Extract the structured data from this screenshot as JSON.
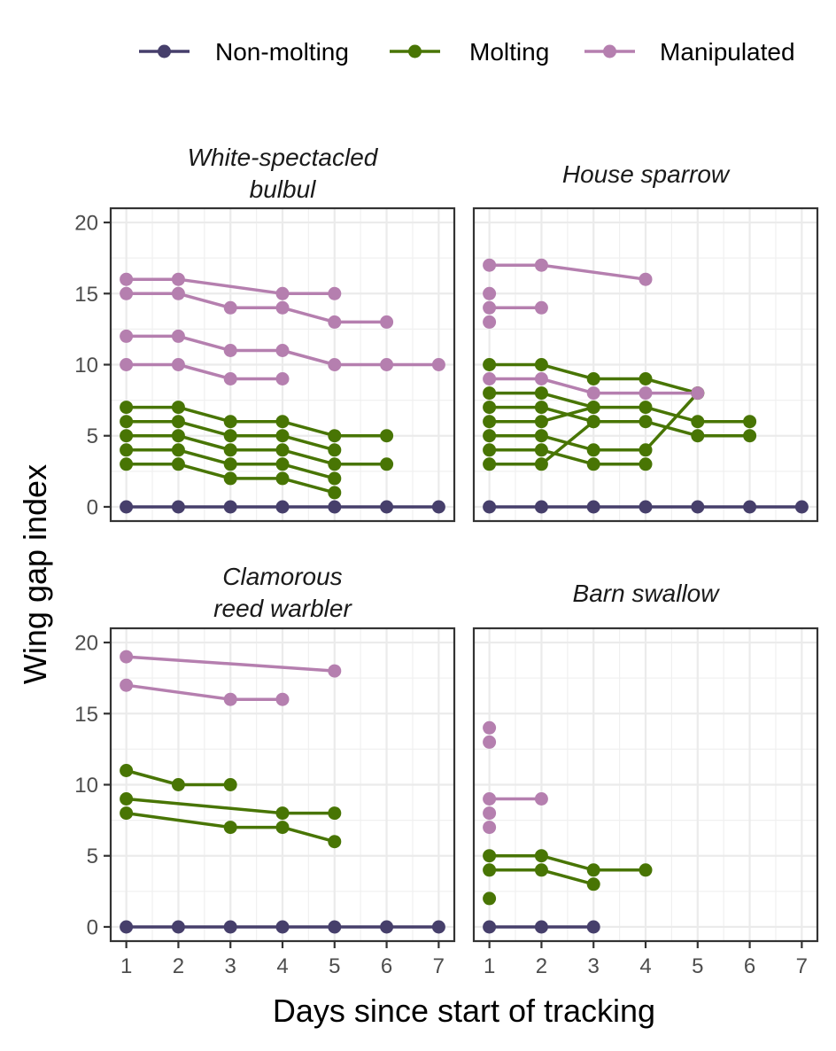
{
  "chart_data": {
    "type": "line",
    "xlabel": "Days since start of tracking",
    "ylabel": "Wing gap index",
    "xlim": [
      0.7,
      7.3
    ],
    "ylim": [
      -1,
      21
    ],
    "x_ticks": [
      1,
      2,
      3,
      4,
      5,
      6,
      7
    ],
    "y_ticks": [
      0,
      5,
      10,
      15,
      20
    ],
    "grid": true,
    "legend_position": "top",
    "legend": [
      {
        "name": "Non-molting",
        "color": "#463F6B"
      },
      {
        "name": "Molting",
        "color": "#487504"
      },
      {
        "name": "Manipulated",
        "color": "#B57FAF"
      }
    ],
    "panels": [
      {
        "title_lines": [
          "White-spectacled",
          "bulbul"
        ],
        "series": [
          {
            "group": "Non-molting",
            "points": [
              [
                1,
                0
              ],
              [
                2,
                0
              ],
              [
                3,
                0
              ],
              [
                4,
                0
              ],
              [
                5,
                0
              ],
              [
                6,
                0
              ],
              [
                7,
                0
              ]
            ]
          },
          {
            "group": "Molting",
            "points": [
              [
                1,
                7
              ],
              [
                2,
                7
              ],
              [
                3,
                6
              ],
              [
                4,
                6
              ],
              [
                5,
                5
              ],
              [
                6,
                5
              ]
            ]
          },
          {
            "group": "Molting",
            "points": [
              [
                1,
                6
              ],
              [
                2,
                6
              ],
              [
                3,
                5
              ],
              [
                4,
                5
              ],
              [
                5,
                4
              ]
            ]
          },
          {
            "group": "Molting",
            "points": [
              [
                1,
                5
              ],
              [
                2,
                5
              ],
              [
                3,
                4
              ],
              [
                4,
                4
              ],
              [
                5,
                3
              ],
              [
                6,
                3
              ]
            ]
          },
          {
            "group": "Molting",
            "points": [
              [
                1,
                4
              ],
              [
                2,
                4
              ],
              [
                3,
                3
              ],
              [
                4,
                3
              ],
              [
                5,
                2
              ]
            ]
          },
          {
            "group": "Molting",
            "points": [
              [
                1,
                3
              ],
              [
                2,
                3
              ],
              [
                3,
                2
              ],
              [
                4,
                2
              ],
              [
                5,
                1
              ]
            ]
          },
          {
            "group": "Manipulated",
            "points": [
              [
                1,
                16
              ],
              [
                2,
                16
              ],
              [
                4,
                15
              ],
              [
                5,
                15
              ]
            ]
          },
          {
            "group": "Manipulated",
            "points": [
              [
                1,
                15
              ],
              [
                2,
                15
              ],
              [
                3,
                14
              ],
              [
                4,
                14
              ],
              [
                5,
                13
              ],
              [
                6,
                13
              ]
            ]
          },
          {
            "group": "Manipulated",
            "points": [
              [
                1,
                12
              ],
              [
                2,
                12
              ],
              [
                3,
                11
              ],
              [
                4,
                11
              ],
              [
                5,
                10
              ],
              [
                6,
                10
              ],
              [
                7,
                10
              ]
            ]
          },
          {
            "group": "Manipulated",
            "points": [
              [
                1,
                10
              ],
              [
                2,
                10
              ],
              [
                3,
                9
              ],
              [
                4,
                9
              ]
            ]
          }
        ]
      },
      {
        "title_lines": [
          "House sparrow"
        ],
        "series": [
          {
            "group": "Non-molting",
            "points": [
              [
                1,
                0
              ],
              [
                2,
                0
              ],
              [
                3,
                0
              ],
              [
                4,
                0
              ],
              [
                5,
                0
              ],
              [
                6,
                0
              ],
              [
                7,
                0
              ]
            ]
          },
          {
            "group": "Molting",
            "points": [
              [
                1,
                10
              ],
              [
                2,
                10
              ],
              [
                3,
                9
              ],
              [
                4,
                9
              ],
              [
                5,
                8
              ]
            ]
          },
          {
            "group": "Molting",
            "points": [
              [
                1,
                8
              ],
              [
                2,
                8
              ],
              [
                3,
                7
              ],
              [
                4,
                7
              ],
              [
                5,
                6
              ],
              [
                6,
                6
              ]
            ]
          },
          {
            "group": "Molting",
            "points": [
              [
                1,
                7
              ],
              [
                2,
                7
              ],
              [
                3,
                6
              ],
              [
                4,
                6
              ],
              [
                5,
                5
              ],
              [
                6,
                5
              ]
            ]
          },
          {
            "group": "Molting",
            "points": [
              [
                1,
                6
              ],
              [
                2,
                6
              ],
              [
                3,
                7
              ]
            ]
          },
          {
            "group": "Molting",
            "points": [
              [
                1,
                5
              ],
              [
                2,
                5
              ],
              [
                3,
                4
              ],
              [
                4,
                4
              ],
              [
                5,
                8
              ]
            ]
          },
          {
            "group": "Molting",
            "points": [
              [
                1,
                4
              ],
              [
                2,
                4
              ],
              [
                3,
                3
              ],
              [
                4,
                3
              ]
            ]
          },
          {
            "group": "Molting",
            "points": [
              [
                1,
                3
              ],
              [
                2,
                3
              ],
              [
                3,
                6
              ]
            ]
          },
          {
            "group": "Manipulated",
            "points": [
              [
                1,
                17
              ],
              [
                2,
                17
              ],
              [
                4,
                16
              ]
            ]
          },
          {
            "group": "Manipulated",
            "points": [
              [
                1,
                15
              ]
            ]
          },
          {
            "group": "Manipulated",
            "points": [
              [
                1,
                14
              ],
              [
                2,
                14
              ]
            ]
          },
          {
            "group": "Manipulated",
            "points": [
              [
                1,
                13
              ]
            ]
          },
          {
            "group": "Manipulated",
            "points": [
              [
                1,
                9
              ],
              [
                2,
                9
              ],
              [
                3,
                8
              ],
              [
                4,
                8
              ],
              [
                5,
                8
              ]
            ]
          }
        ]
      },
      {
        "title_lines": [
          "Clamorous",
          "reed warbler"
        ],
        "series": [
          {
            "group": "Non-molting",
            "points": [
              [
                1,
                0
              ],
              [
                2,
                0
              ],
              [
                3,
                0
              ],
              [
                4,
                0
              ],
              [
                5,
                0
              ],
              [
                6,
                0
              ],
              [
                7,
                0
              ]
            ]
          },
          {
            "group": "Molting",
            "points": [
              [
                1,
                11
              ],
              [
                2,
                10
              ],
              [
                3,
                10
              ]
            ]
          },
          {
            "group": "Molting",
            "points": [
              [
                1,
                9
              ],
              [
                4,
                8
              ],
              [
                5,
                8
              ]
            ]
          },
          {
            "group": "Molting",
            "points": [
              [
                1,
                8
              ],
              [
                3,
                7
              ],
              [
                4,
                7
              ],
              [
                5,
                6
              ]
            ]
          },
          {
            "group": "Manipulated",
            "points": [
              [
                1,
                19
              ],
              [
                5,
                18
              ]
            ]
          },
          {
            "group": "Manipulated",
            "points": [
              [
                1,
                17
              ],
              [
                3,
                16
              ],
              [
                4,
                16
              ]
            ]
          }
        ]
      },
      {
        "title_lines": [
          "Barn swallow"
        ],
        "series": [
          {
            "group": "Non-molting",
            "points": [
              [
                1,
                0
              ],
              [
                2,
                0
              ],
              [
                3,
                0
              ]
            ]
          },
          {
            "group": "Molting",
            "points": [
              [
                1,
                5
              ],
              [
                2,
                5
              ],
              [
                3,
                4
              ],
              [
                4,
                4
              ]
            ]
          },
          {
            "group": "Molting",
            "points": [
              [
                1,
                4
              ],
              [
                2,
                4
              ],
              [
                3,
                3
              ]
            ]
          },
          {
            "group": "Molting",
            "points": [
              [
                1,
                2
              ]
            ]
          },
          {
            "group": "Manipulated",
            "points": [
              [
                1,
                14
              ]
            ]
          },
          {
            "group": "Manipulated",
            "points": [
              [
                1,
                13
              ]
            ]
          },
          {
            "group": "Manipulated",
            "points": [
              [
                1,
                9
              ],
              [
                2,
                9
              ]
            ]
          },
          {
            "group": "Manipulated",
            "points": [
              [
                1,
                8
              ]
            ]
          },
          {
            "group": "Manipulated",
            "points": [
              [
                1,
                7
              ]
            ]
          }
        ]
      }
    ]
  }
}
